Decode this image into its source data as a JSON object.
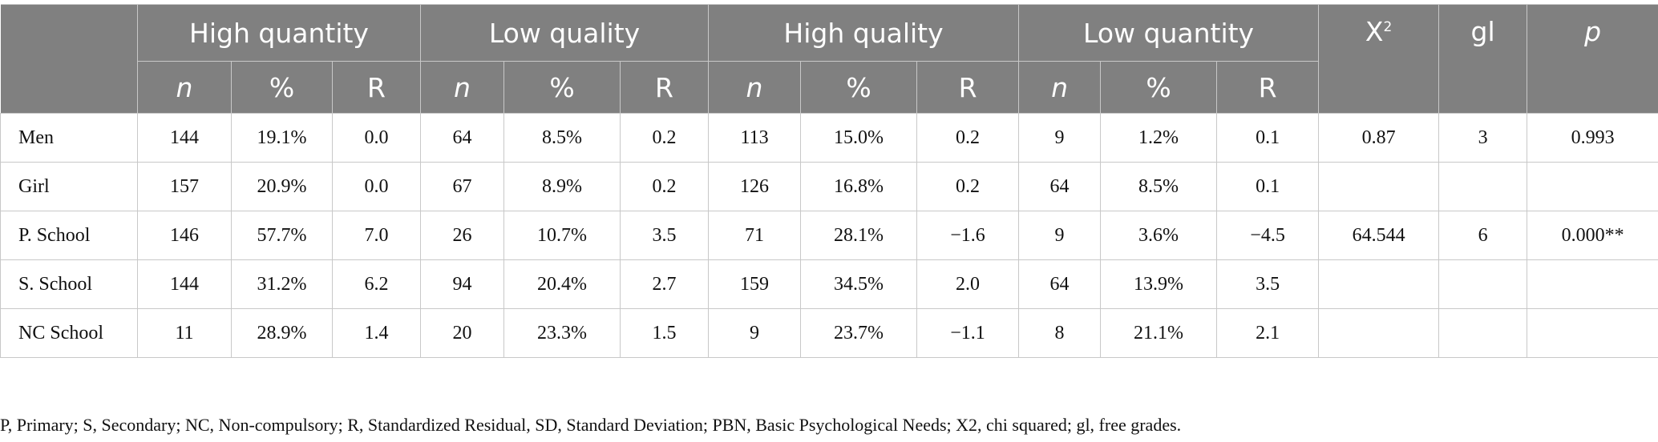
{
  "groups": [
    "High quantity",
    "Low quality",
    "High quality",
    "Low quantity"
  ],
  "subheaders": [
    "n",
    "%",
    "R"
  ],
  "stats_headers": {
    "chi_base": "X",
    "chi_sup": "2",
    "gl": "gl",
    "p": "p"
  },
  "rows": [
    {
      "label": "Men",
      "cells": [
        "144",
        "19.1%",
        "0.0",
        "64",
        "8.5%",
        "0.2",
        "113",
        "15.0%",
        "0.2",
        "9",
        "1.2%",
        "0.1",
        "0.87",
        "3",
        "0.993"
      ]
    },
    {
      "label": "Girl",
      "cells": [
        "157",
        "20.9%",
        "0.0",
        "67",
        "8.9%",
        "0.2",
        "126",
        "16.8%",
        "0.2",
        "64",
        "8.5%",
        "0.1",
        "",
        "",
        ""
      ]
    },
    {
      "label": "P. School",
      "cells": [
        "146",
        "57.7%",
        "7.0",
        "26",
        "10.7%",
        "3.5",
        "71",
        "28.1%",
        "−1.6",
        "9",
        "3.6%",
        "−4.5",
        "64.544",
        "6",
        "0.000**"
      ]
    },
    {
      "label": "S. School",
      "cells": [
        "144",
        "31.2%",
        "6.2",
        "94",
        "20.4%",
        "2.7",
        "159",
        "34.5%",
        "2.0",
        "64",
        "13.9%",
        "3.5",
        "",
        "",
        ""
      ]
    },
    {
      "label": "NC School",
      "cells": [
        "11",
        "28.9%",
        "1.4",
        "20",
        "23.3%",
        "1.5",
        "9",
        "23.7%",
        "−1.1",
        "8",
        "21.1%",
        "2.1",
        "",
        "",
        ""
      ]
    }
  ],
  "footnote": "P, Primary; S, Secondary; NC, Non-compulsory; R, Standardized Residual, SD, Standard Deviation; PBN, Basic Psychological Needs; X2, chi squared; gl, free grades."
}
